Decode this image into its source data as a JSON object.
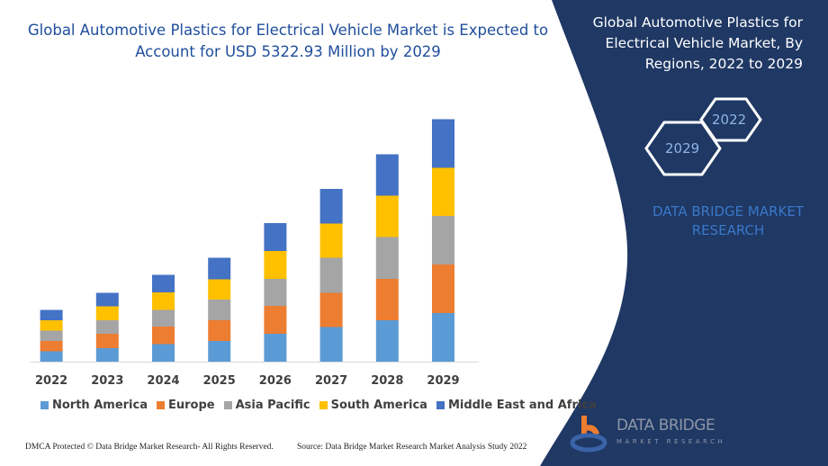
{
  "header": {
    "title": "Global Automotive Plastics for Electrical Vehicle Market is Expected to Account for USD 5322.93 Million by 2029"
  },
  "side_panel": {
    "title": "Global Automotive Plastics for Electrical Vehicle Market, By Regions, 2022 to 2029",
    "hex_2022": "2022",
    "hex_2029": "2029",
    "brand_text": "DATA BRIDGE MARKET RESEARCH",
    "logo_name": "DATA BRIDGE",
    "logo_sub": "MARKET RESEARCH",
    "background_color": "#1f3864"
  },
  "footer": {
    "left": "DMCA Protected © Data Bridge Market Research- All Rights Reserved.",
    "right": "Source: Data Bridge Market Research Market Analysis Study 2022"
  },
  "chart_data": {
    "type": "bar",
    "stacked": true,
    "title": "",
    "xlabel": "",
    "ylabel": "",
    "y_axis_visible": false,
    "grid": false,
    "legend_position": "bottom",
    "categories": [
      "2022",
      "2023",
      "2024",
      "2025",
      "2026",
      "2027",
      "2028",
      "2029"
    ],
    "series": [
      {
        "name": "North America",
        "color": "#5b9bd5",
        "values": [
          11.5,
          15,
          19.5,
          23,
          31,
          38.5,
          46,
          54
        ]
      },
      {
        "name": "Europe",
        "color": "#ed7d31",
        "values": [
          11.5,
          16,
          19.5,
          23,
          31,
          38,
          46,
          54
        ]
      },
      {
        "name": "Asia Pacific",
        "color": "#a5a5a5",
        "values": [
          11.5,
          15,
          18.5,
          23,
          30,
          39,
          46.5,
          54
        ]
      },
      {
        "name": "South America",
        "color": "#ffc000",
        "values": [
          11.5,
          15.5,
          19.5,
          22.5,
          31,
          38,
          46,
          53.5
        ]
      },
      {
        "name": "Middle East and Africa",
        "color": "#4472c4",
        "values": [
          11.5,
          15,
          19.5,
          24,
          31,
          38.5,
          46,
          54
        ]
      }
    ]
  }
}
